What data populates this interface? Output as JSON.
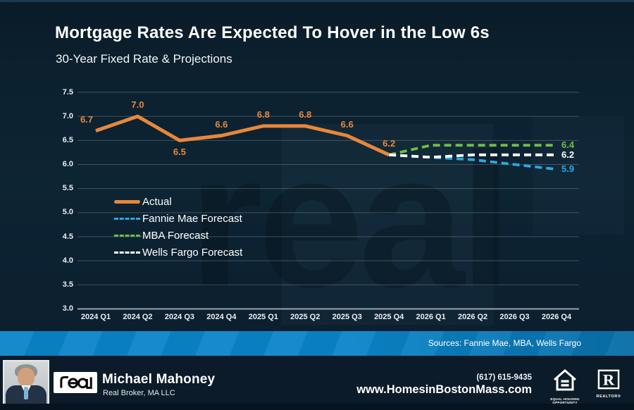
{
  "accent_colors": {
    "actual_orange": "#E8873B",
    "fannie_blue": "#2BA9E0",
    "mba_green": "#70BE44",
    "wells_white": "#FFFFFF",
    "sources_band_blue": "#0A84C8",
    "background_navy": "#0C2130"
  },
  "chart_data": {
    "type": "line",
    "title": "Mortgage Rates Are Expected To Hover in the Low 6s",
    "subtitle": "30-Year Fixed Rate & Projections",
    "categories": [
      "2024 Q1",
      "2024 Q2",
      "2024 Q3",
      "2024 Q4",
      "2025 Q1",
      "2025 Q2",
      "2025 Q3",
      "2025 Q4",
      "2026 Q1",
      "2026 Q2",
      "2026 Q3",
      "2026 Q4"
    ],
    "ylim": [
      3.0,
      7.5
    ],
    "ytick_step": 0.5,
    "yticks": [
      7.5,
      7.0,
      6.5,
      6.0,
      5.5,
      5.0,
      4.5,
      4.0,
      3.5,
      3.0
    ],
    "grid": true,
    "legend_position": "middle-left",
    "series": [
      {
        "name": "Actual",
        "color": "#E8873B",
        "dash": false,
        "start_index": 0,
        "values": [
          6.7,
          7.0,
          6.5,
          6.6,
          6.8,
          6.8,
          6.6,
          6.2
        ],
        "labels": [
          "6.7",
          "7.0",
          "6.5",
          "6.6",
          "6.8",
          "6.8",
          "6.6",
          "6.2"
        ],
        "label_pos": [
          "above-left",
          "above",
          "below",
          "above",
          "above",
          "above",
          "above",
          "above"
        ]
      },
      {
        "name": "Fannie Mae Forecast",
        "color": "#2BA9E0",
        "dash": true,
        "start_index": 7,
        "values": [
          6.2,
          6.15,
          6.1,
          6.0,
          5.9
        ],
        "end_label": "5.9"
      },
      {
        "name": "MBA Forecast",
        "color": "#70BE44",
        "dash": true,
        "start_index": 7,
        "values": [
          6.2,
          6.4,
          6.4,
          6.4,
          6.4
        ],
        "end_label": "6.4"
      },
      {
        "name": "Wells Fargo Forecast",
        "color": "#FFFFFF",
        "dash": true,
        "start_index": 7,
        "values": [
          6.2,
          6.15,
          6.2,
          6.2,
          6.2
        ],
        "end_label": "6.2"
      }
    ]
  },
  "watermark": {
    "text": "real"
  },
  "sources_bar": {
    "text": "Sources: Fannie Mae, MBA, Wells Fargo"
  },
  "footer": {
    "brand_logo_text": "real",
    "agent_name": "Michael Mahoney",
    "agent_company": "Real Broker, MA LLC",
    "phone": "(617) 615-9435",
    "website": "www.HomesinBostonMass.com",
    "equal_housing_label": "EQUAL HOUSING OPPORTUNITY",
    "realtor_label": "REALTOR®"
  }
}
